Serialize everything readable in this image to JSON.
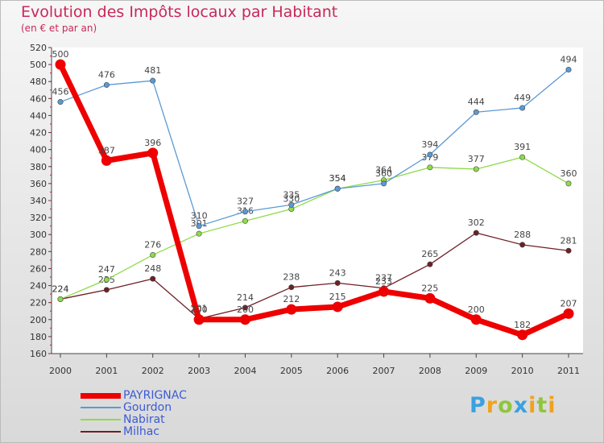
{
  "chart_data": {
    "type": "line",
    "title": "Evolution des Impôts locaux par Habitant",
    "subtitle": "(en € et par an)",
    "xlabel": "",
    "ylabel": "",
    "x": [
      "2000",
      "2001",
      "2002",
      "2003",
      "2004",
      "2005",
      "2006",
      "2007",
      "2008",
      "2009",
      "2010",
      "2011"
    ],
    "ylim": [
      160,
      520
    ],
    "yticks": [
      "160",
      "180",
      "200",
      "220",
      "240",
      "260",
      "280",
      "300",
      "320",
      "340",
      "360",
      "380",
      "400",
      "420",
      "440",
      "460",
      "480",
      "500",
      "520"
    ],
    "grid": false,
    "legend_position": "bottom-left",
    "series": [
      {
        "name": "Milhac",
        "color": "#6e1f25",
        "values": [
          224,
          235,
          248,
          201,
          214,
          238,
          243,
          237,
          265,
          302,
          288,
          281
        ]
      },
      {
        "name": "Nabirat",
        "color": "#8edb4a",
        "values": [
          224,
          247,
          276,
          301,
          316,
          330,
          354,
          364,
          379,
          377,
          391,
          360
        ]
      },
      {
        "name": "Gourdon",
        "color": "#5b9ad4",
        "values": [
          456,
          476,
          481,
          310,
          327,
          335,
          354,
          360,
          394,
          444,
          449,
          494
        ]
      },
      {
        "name": "PAYRIGNAC",
        "color": "#ee0000",
        "values": [
          500,
          387,
          396,
          200,
          200,
          212,
          215,
          233,
          225,
          200,
          182,
          207
        ]
      }
    ],
    "legend_order": [
      "PAYRIGNAC",
      "Gourdon",
      "Nabirat",
      "Milhac"
    ]
  },
  "logo": {
    "letters": [
      "P",
      "r",
      "o",
      "x",
      "i",
      "t",
      "i"
    ],
    "colors": [
      "#3aa1e0",
      "#f0a21c",
      "#8fc63d",
      "#3aa1e0",
      "#f0a21c",
      "#8fc63d",
      "#f0a21c"
    ]
  }
}
